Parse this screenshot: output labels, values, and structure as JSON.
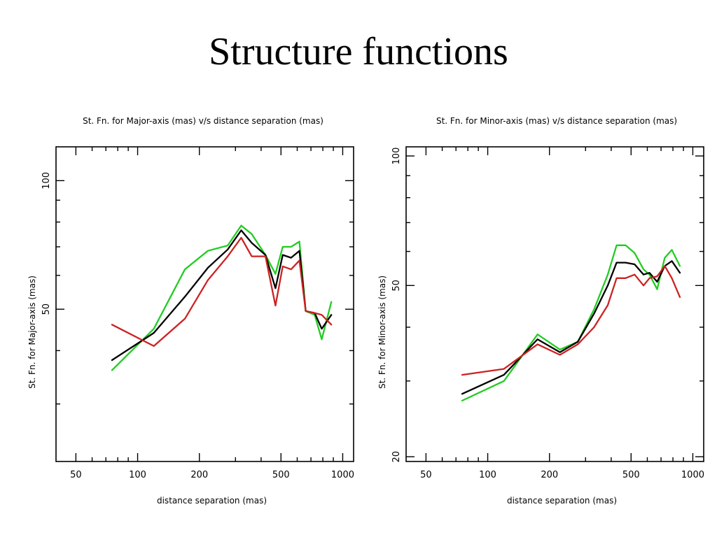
{
  "title": "Structure functions",
  "colors": {
    "green": "#22cc22",
    "black": "#000000",
    "red": "#cc2222"
  },
  "chart_data": [
    {
      "type": "line",
      "title": "St. Fn. for Major-axis (mas) v/s distance separation (mas)",
      "xlabel": "distance separation (mas)",
      "ylabel": "St. Fn. for Major-axis (mas)",
      "xscale": "log",
      "yscale": "log",
      "xlim": [
        40,
        1130
      ],
      "ylim": [
        22,
        120
      ],
      "xticks": [
        50,
        100,
        200,
        500,
        1000
      ],
      "xtick_labels": [
        "50",
        "100",
        "200",
        "500",
        "1000"
      ],
      "yticks": [
        50,
        100
      ],
      "ytick_labels": [
        "50",
        "100"
      ],
      "grid": false,
      "series": [
        {
          "color": "green",
          "x": [
            75,
            120,
            170,
            220,
            275,
            320,
            360,
            420,
            470,
            510,
            560,
            615,
            660,
            730,
            790,
            880
          ],
          "y": [
            36,
            45,
            62,
            68.5,
            70.5,
            78.5,
            75,
            67,
            60.5,
            70,
            70,
            72,
            49.5,
            48.5,
            42.5,
            52
          ]
        },
        {
          "color": "black",
          "x": [
            75,
            120,
            170,
            220,
            275,
            320,
            360,
            420,
            470,
            510,
            560,
            615,
            660,
            730,
            790,
            880
          ],
          "y": [
            38,
            44,
            53.5,
            62.5,
            69,
            76.5,
            71.5,
            67,
            56,
            67,
            66,
            68.5,
            49.5,
            49,
            45,
            48.5
          ]
        },
        {
          "color": "red",
          "x": [
            75,
            120,
            170,
            220,
            275,
            320,
            360,
            420,
            470,
            510,
            560,
            615,
            660,
            730,
            790,
            880
          ],
          "y": [
            46,
            41,
            47.5,
            58.5,
            66.5,
            73.5,
            66.5,
            66.5,
            51,
            63,
            62,
            65,
            49.5,
            49,
            48.5,
            46
          ]
        }
      ]
    },
    {
      "type": "line",
      "title": "St. Fn. for Minor-axis (mas) v/s distance separation (mas)",
      "xlabel": "distance separation (mas)",
      "ylabel": "St. Fn. for Minor-axis (mas)",
      "xscale": "log",
      "yscale": "log",
      "xlim": [
        40,
        1130
      ],
      "ylim": [
        19.5,
        105
      ],
      "xticks": [
        50,
        100,
        200,
        500,
        1000
      ],
      "xtick_labels": [
        "50",
        "100",
        "200",
        "500",
        "1000"
      ],
      "yticks": [
        20,
        50,
        100
      ],
      "ytick_labels": [
        "20",
        "50",
        "100"
      ],
      "grid": false,
      "series": [
        {
          "color": "green",
          "x": [
            75,
            120,
            175,
            225,
            275,
            330,
            385,
            425,
            470,
            520,
            575,
            615,
            670,
            730,
            790,
            865
          ],
          "y": [
            27,
            30,
            38.5,
            35.5,
            37,
            44,
            53,
            62,
            62,
            59.5,
            54.5,
            53,
            49,
            58,
            60.5,
            55.5
          ]
        },
        {
          "color": "black",
          "x": [
            75,
            120,
            175,
            225,
            275,
            330,
            385,
            425,
            470,
            520,
            575,
            615,
            670,
            730,
            790,
            865
          ],
          "y": [
            28,
            31,
            37.5,
            35,
            37,
            43,
            50,
            56.5,
            56.5,
            56,
            53,
            53.5,
            51,
            55.5,
            57,
            53.5
          ]
        },
        {
          "color": "red",
          "x": [
            75,
            120,
            175,
            225,
            275,
            330,
            385,
            425,
            470,
            520,
            575,
            615,
            670,
            730,
            790,
            865
          ],
          "y": [
            31,
            32,
            36.5,
            34.5,
            36.5,
            40,
            45,
            52,
            52,
            53,
            50,
            52,
            52.5,
            55.5,
            52,
            47
          ]
        }
      ]
    }
  ]
}
